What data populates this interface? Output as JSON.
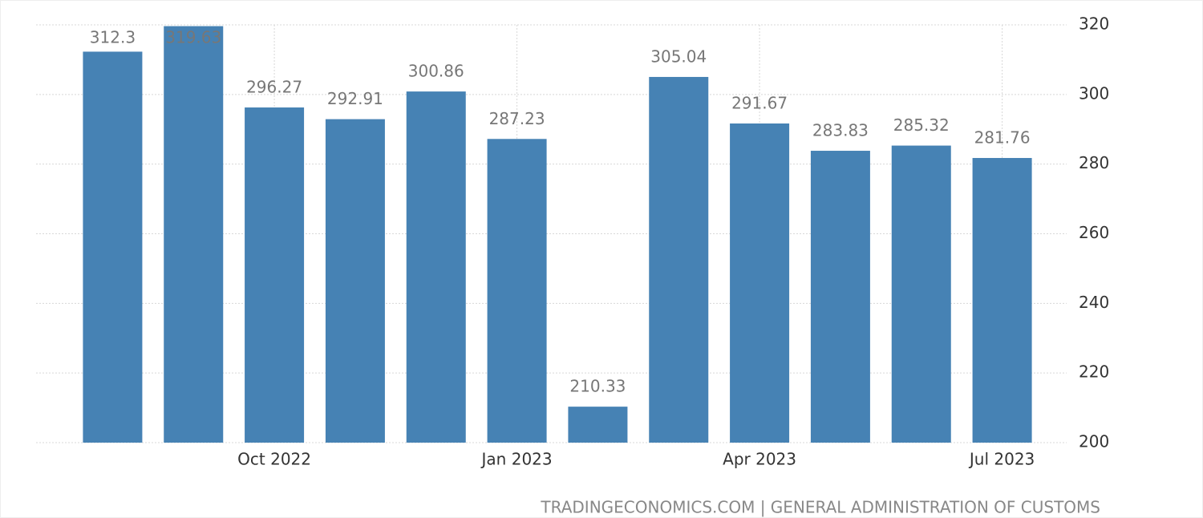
{
  "chart_data": {
    "type": "bar",
    "categories": [
      null,
      null,
      "Oct 2022",
      null,
      null,
      "Jan 2023",
      null,
      null,
      "Apr 2023",
      null,
      null,
      "Jul 2023"
    ],
    "values": [
      312.3,
      319.63,
      296.27,
      292.91,
      300.86,
      287.23,
      210.33,
      305.04,
      291.67,
      283.83,
      285.32,
      281.76
    ],
    "color": "#4682b4",
    "ylim": [
      200,
      320
    ],
    "yticks": [
      200,
      220,
      240,
      260,
      280,
      300,
      320
    ],
    "grid": true,
    "source": "TRADINGECONOMICS.COM | GENERAL ADMINISTRATION OF CUSTOMS"
  }
}
